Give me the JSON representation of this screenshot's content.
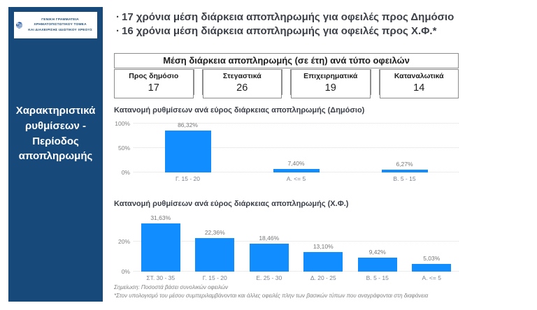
{
  "sidebar": {
    "bg_color": "#17497B",
    "logo_line1": "ΓΕΝΙΚΗ ΓΡΑΜΜΑΤΕΙΑ ΧΡΗΜΑΤΟΠΙΣΤΩΤΙΚΟΥ ΤΟΜΕΑ",
    "logo_line2": "ΚΑΙ ΔΙΑΧΕΙΡΙΣΗΣ ΙΔΙΩΤΙΚΟΥ ΧΡΕΟΥΣ",
    "title": "Χαρακτηριστικά ρυθμίσεων - Περίοδος αποπληρωμής"
  },
  "bullets": [
    "17 χρόνια μέση διάρκεια αποπληρωμής για οφειλές προς Δημόσιο",
    "16 χρόνια μέση διάρκεια αποπληρωμής για οφειλές προς Χ.Φ.*"
  ],
  "summary_table": {
    "header": "Μέση διάρκεια αποπληρωμής (σε έτη) ανά τύπο οφειλών",
    "cells": [
      {
        "label": "Προς δημόσιο",
        "value": "17"
      },
      {
        "label": "Στεγαστικά",
        "value": "26"
      },
      {
        "label": "Επιχειρηματικά",
        "value": "19"
      },
      {
        "label": "Καταναλωτικά",
        "value": "14"
      }
    ]
  },
  "chart_data": [
    {
      "type": "bar",
      "title": "Κατανομή ρυθμίσεων ανά εύρος διάρκειας αποπληρωμής (Δημόσιο)",
      "categories": [
        "Γ. 15 - 20",
        "Α. <= 5",
        "Β. 5 - 15"
      ],
      "values": [
        86.32,
        7.4,
        6.27
      ],
      "labels": [
        "86,32%",
        "7,40%",
        "6,27%"
      ],
      "ylim": [
        0,
        100
      ],
      "yticks": [
        {
          "value": 0,
          "label": "0%"
        },
        {
          "value": 50,
          "label": "50%"
        },
        {
          "value": 100,
          "label": "100%"
        }
      ],
      "bar_color": "#118DFF",
      "grid": "dotted-horizontal",
      "legend": "none"
    },
    {
      "type": "bar",
      "title": "Κατανομή ρυθμίσεων ανά εύρος διάρκειας αποπληρωμής (Χ.Φ.)",
      "categories": [
        "ΣΤ. 30 - 35",
        "Γ. 15 - 20",
        "Ε. 25 - 30",
        "Δ. 20 - 25",
        "Β. 5 - 15",
        "Α. <= 5"
      ],
      "values": [
        31.63,
        22.36,
        18.46,
        13.1,
        9.42,
        5.03
      ],
      "labels": [
        "31,63%",
        "22,36%",
        "18,46%",
        "13,10%",
        "9,42%",
        "5,03%"
      ],
      "ylim": [
        0,
        36
      ],
      "yticks": [
        {
          "value": 0,
          "label": "0%"
        },
        {
          "value": 20,
          "label": "20%"
        }
      ],
      "bar_color": "#118DFF",
      "grid": "dotted-horizontal",
      "legend": "none"
    }
  ],
  "notes": [
    "Σημείωση: Ποσοστά βάσει συνολικών οφειλών",
    "*Στον υπολογισμό του μέσου συμπεριλαμβάνονται και άλλες οφειλές πλην των βασικών τύπων που αναγράφονται στη διαφάνεια"
  ]
}
